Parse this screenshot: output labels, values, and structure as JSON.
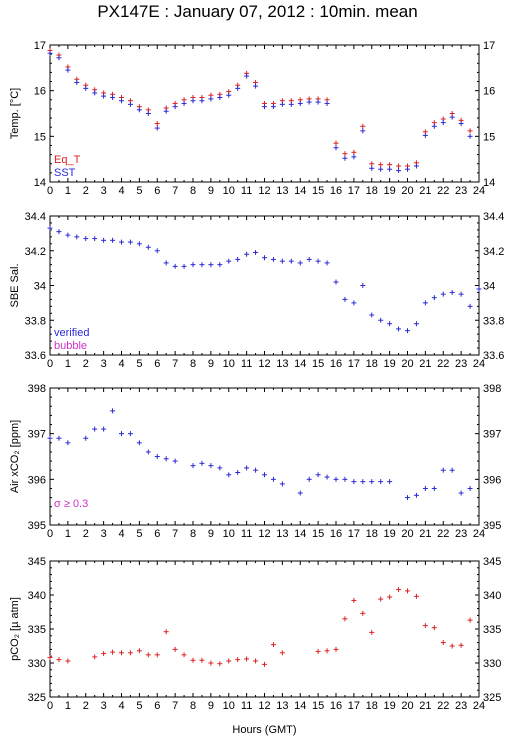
{
  "title": "PX147E : January 07, 2012 : 10min. mean",
  "xlabel": "Hours (GMT)",
  "colors": {
    "red": "#dd2222",
    "blue": "#2b2bd6",
    "magenta": "#cc33cc",
    "frame": "#000000"
  },
  "chart_data": [
    {
      "type": "scatter",
      "ylabel": "Temp. [°C]",
      "xlim": [
        0,
        24
      ],
      "ylim": [
        14,
        17
      ],
      "yticks": [
        14,
        15,
        16,
        17
      ],
      "xticks": [
        0,
        1,
        2,
        3,
        4,
        5,
        6,
        7,
        8,
        9,
        10,
        11,
        12,
        13,
        14,
        15,
        16,
        17,
        18,
        19,
        20,
        21,
        22,
        23,
        24
      ],
      "legend": [
        {
          "label": "Eq_T",
          "color": "#dd2222"
        },
        {
          "label": "SST",
          "color": "#2b2bd6"
        }
      ],
      "series": [
        {
          "name": "Eq_T",
          "color": "#dd2222",
          "x": [
            0,
            0.5,
            1,
            1.5,
            2,
            2.5,
            3,
            3.5,
            4,
            4.5,
            5,
            5.5,
            6,
            6.5,
            7,
            7.5,
            8,
            8.5,
            9,
            9.5,
            10,
            10.5,
            11,
            11.5,
            12,
            12.5,
            13,
            13.5,
            14,
            14.5,
            15,
            15.5,
            16,
            16.5,
            17,
            17.5,
            18,
            18.5,
            19,
            19.5,
            20,
            20.5,
            21,
            21.5,
            22,
            22.5,
            23,
            23.5
          ],
          "y": [
            16.88,
            16.78,
            16.52,
            16.25,
            16.12,
            16.02,
            15.95,
            15.92,
            15.85,
            15.78,
            15.65,
            15.58,
            15.28,
            15.62,
            15.72,
            15.8,
            15.85,
            15.85,
            15.9,
            15.92,
            15.98,
            16.12,
            16.38,
            16.18,
            15.72,
            15.72,
            15.78,
            15.78,
            15.8,
            15.82,
            15.82,
            15.8,
            14.85,
            14.62,
            14.65,
            15.22,
            14.4,
            14.38,
            14.38,
            14.35,
            14.35,
            14.42,
            15.1,
            15.3,
            15.38,
            15.5,
            15.35,
            15.12
          ]
        },
        {
          "name": "SST",
          "color": "#2b2bd6",
          "x": [
            0,
            0.5,
            1,
            1.5,
            2,
            2.5,
            3,
            3.5,
            4,
            4.5,
            5,
            5.5,
            6,
            6.5,
            7,
            7.5,
            8,
            8.5,
            9,
            9.5,
            10,
            10.5,
            11,
            11.5,
            12,
            12.5,
            13,
            13.5,
            14,
            14.5,
            15,
            15.5,
            16,
            16.5,
            17,
            17.5,
            18,
            18.5,
            19,
            19.5,
            20,
            20.5,
            21,
            21.5,
            22,
            22.5,
            23,
            23.5
          ],
          "y": [
            16.82,
            16.72,
            16.45,
            16.18,
            16.05,
            15.95,
            15.88,
            15.85,
            15.78,
            15.7,
            15.58,
            15.5,
            15.18,
            15.55,
            15.65,
            15.72,
            15.78,
            15.78,
            15.82,
            15.85,
            15.9,
            16.05,
            16.32,
            16.1,
            15.65,
            15.65,
            15.7,
            15.7,
            15.72,
            15.75,
            15.75,
            15.72,
            14.75,
            14.52,
            14.55,
            15.12,
            14.3,
            14.28,
            14.28,
            14.25,
            14.28,
            14.35,
            15.02,
            15.22,
            15.3,
            15.42,
            15.28,
            15.0
          ]
        }
      ]
    },
    {
      "type": "scatter",
      "ylabel": "SBE Sal.",
      "xlim": [
        0,
        24
      ],
      "ylim": [
        33.6,
        34.4
      ],
      "yticks": [
        33.6,
        33.8,
        34,
        34.2,
        34.4
      ],
      "xticks": [
        0,
        1,
        2,
        3,
        4,
        5,
        6,
        7,
        8,
        9,
        10,
        11,
        12,
        13,
        14,
        15,
        16,
        17,
        18,
        19,
        20,
        21,
        22,
        23,
        24
      ],
      "legend": [
        {
          "label": "verified",
          "color": "#2b2bd6"
        },
        {
          "label": "bubble",
          "color": "#cc33cc"
        }
      ],
      "series": [
        {
          "name": "verified",
          "color": "#2b2bd6",
          "x": [
            0,
            0.5,
            1,
            1.5,
            2,
            2.5,
            3,
            3.5,
            4,
            4.5,
            5,
            5.5,
            6,
            6.5,
            7,
            7.5,
            8,
            8.5,
            9,
            9.5,
            10,
            10.5,
            11,
            11.5,
            12,
            12.5,
            13,
            13.5,
            14,
            14.5,
            15,
            15.5,
            16,
            16.5,
            17,
            17.5,
            18,
            18.5,
            19,
            19.5,
            20,
            20.5,
            21,
            21.5,
            22,
            22.5,
            23,
            23.5,
            24
          ],
          "y": [
            34.33,
            34.31,
            34.29,
            34.28,
            34.27,
            34.27,
            34.26,
            34.26,
            34.25,
            34.25,
            34.24,
            34.22,
            34.2,
            34.13,
            34.11,
            34.11,
            34.12,
            34.12,
            34.12,
            34.12,
            34.14,
            34.15,
            34.18,
            34.19,
            34.16,
            34.15,
            34.14,
            34.14,
            34.13,
            34.15,
            34.14,
            34.13,
            34.02,
            33.92,
            33.9,
            34.0,
            33.83,
            33.8,
            33.78,
            33.75,
            33.74,
            33.78,
            33.9,
            33.93,
            33.95,
            33.96,
            33.95,
            33.88,
            33.98
          ]
        }
      ]
    },
    {
      "type": "scatter",
      "ylabel": "Air xCO₂ [ppm]",
      "xlim": [
        0,
        24
      ],
      "ylim": [
        395,
        398
      ],
      "yticks": [
        395,
        396,
        397,
        398
      ],
      "xticks": [
        0,
        1,
        2,
        3,
        4,
        5,
        6,
        7,
        8,
        9,
        10,
        11,
        12,
        13,
        14,
        15,
        16,
        17,
        18,
        19,
        20,
        21,
        22,
        23,
        24
      ],
      "annotation": "σ ≥ 0.3",
      "series": [
        {
          "name": "",
          "color": "#2b2bd6",
          "x": [
            0,
            0.5,
            1,
            2,
            2.5,
            3,
            3.5,
            4,
            4.5,
            5,
            5.5,
            6,
            6.5,
            7,
            8,
            8.5,
            9,
            9.5,
            10,
            10.5,
            11,
            11.5,
            12,
            12.5,
            13,
            14,
            14.5,
            15,
            15.5,
            16,
            16.5,
            17,
            17.5,
            18,
            18.5,
            19,
            20,
            20.5,
            21,
            21.5,
            22,
            22.5,
            23,
            23.5
          ],
          "y": [
            396.9,
            396.9,
            396.8,
            396.9,
            397.1,
            397.1,
            397.5,
            397.0,
            397.0,
            396.8,
            396.6,
            396.5,
            396.45,
            396.4,
            396.3,
            396.35,
            396.3,
            396.25,
            396.1,
            396.15,
            396.25,
            396.2,
            396.1,
            396.0,
            395.9,
            395.7,
            396.0,
            396.1,
            396.05,
            396.0,
            396.0,
            395.95,
            395.95,
            395.95,
            395.95,
            395.95,
            395.6,
            395.65,
            395.8,
            395.8,
            396.2,
            396.2,
            395.7,
            395.8
          ]
        }
      ]
    },
    {
      "type": "scatter",
      "ylabel": "pCO₂ [µ atm]",
      "xlim": [
        0,
        24
      ],
      "ylim": [
        325,
        345
      ],
      "yticks": [
        325,
        330,
        335,
        340,
        345
      ],
      "xticks": [
        0,
        1,
        2,
        3,
        4,
        5,
        6,
        7,
        8,
        9,
        10,
        11,
        12,
        13,
        14,
        15,
        16,
        17,
        18,
        19,
        20,
        21,
        22,
        23,
        24
      ],
      "series": [
        {
          "name": "",
          "color": "#dd2222",
          "x": [
            0,
            0.5,
            1,
            2.5,
            3,
            3.5,
            4,
            4.5,
            5,
            5.5,
            6,
            6.5,
            7,
            7.5,
            8,
            8.5,
            9,
            9.5,
            10,
            10.5,
            11,
            11.5,
            12,
            12.5,
            13,
            15,
            15.5,
            16,
            16.5,
            17,
            17.5,
            18,
            18.5,
            19,
            19.5,
            20,
            20.5,
            21,
            21.5,
            22,
            22.5,
            23,
            23.5
          ],
          "y": [
            330.8,
            330.5,
            330.3,
            330.9,
            331.4,
            331.6,
            331.5,
            331.5,
            331.8,
            331.2,
            331.2,
            334.6,
            332.0,
            331.2,
            330.4,
            330.4,
            330.0,
            329.9,
            330.3,
            330.5,
            330.6,
            330.3,
            329.8,
            332.7,
            331.5,
            331.7,
            331.8,
            332.0,
            336.5,
            339.2,
            337.3,
            334.5,
            339.4,
            339.7,
            340.8,
            340.6,
            339.8,
            335.5,
            335.2,
            333.0,
            332.5,
            332.6,
            336.3
          ]
        }
      ]
    }
  ]
}
